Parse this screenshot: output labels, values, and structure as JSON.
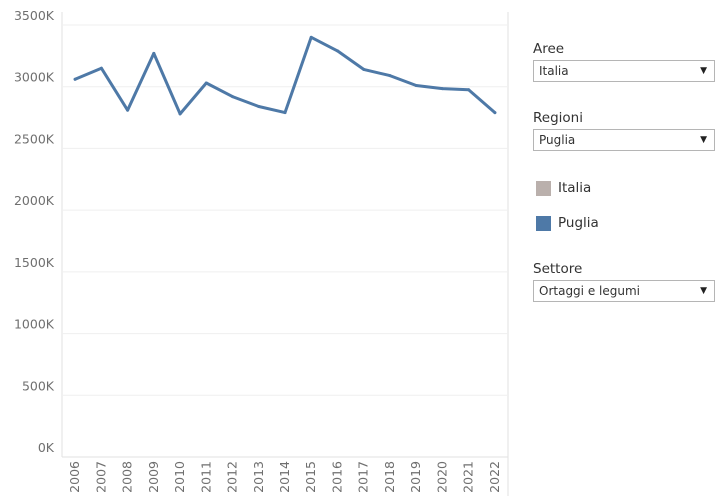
{
  "chart_data": {
    "type": "line",
    "x": [
      "2006",
      "2007",
      "2008",
      "2009",
      "2010",
      "2011",
      "2012",
      "2013",
      "2014",
      "2015",
      "2016",
      "2017",
      "2018",
      "2019",
      "2020",
      "2021",
      "2022"
    ],
    "series": [
      {
        "name": "Puglia",
        "color": "#4e79a7",
        "values": [
          3060000,
          3150000,
          2810000,
          3270000,
          2780000,
          3030000,
          2920000,
          2840000,
          2790000,
          3400000,
          3290000,
          3140000,
          3090000,
          3010000,
          2985000,
          2975000,
          2790000
        ]
      }
    ],
    "ylim": [
      0,
      3500000
    ],
    "yticks": [
      0,
      500000,
      1000000,
      1500000,
      2000000,
      2500000,
      3000000,
      3500000
    ],
    "ytick_labels": [
      "0K",
      "500K",
      "1000K",
      "1500K",
      "2000K",
      "2500K",
      "3000K",
      "3500K"
    ],
    "xlabel": "",
    "ylabel": "",
    "grid": true
  },
  "filters": {
    "aree": {
      "label": "Aree",
      "value": "Italia"
    },
    "regioni": {
      "label": "Regioni",
      "value": "Puglia"
    },
    "settore": {
      "label": "Settore",
      "value": "Ortaggi e legumi"
    }
  },
  "legend": [
    {
      "label": "Italia",
      "color": "#bab0ac"
    },
    {
      "label": "Puglia",
      "color": "#4e79a7"
    }
  ],
  "icons": {
    "dropdown": "chevron-down-icon"
  }
}
